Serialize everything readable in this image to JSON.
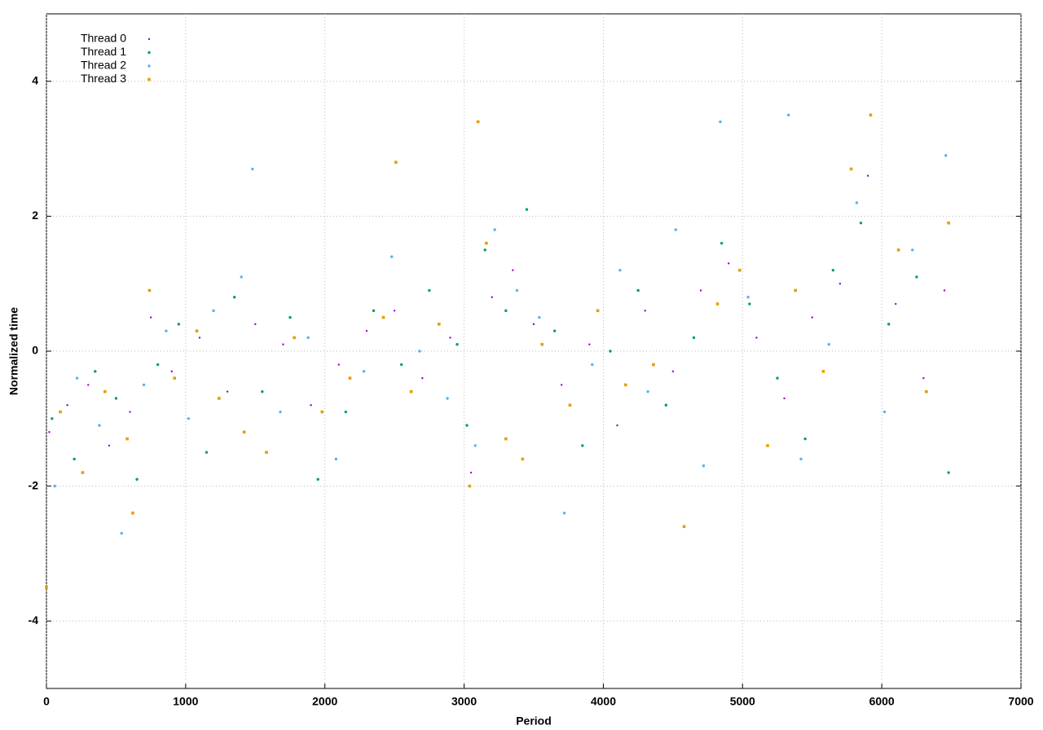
{
  "chart_data": {
    "type": "scatter",
    "x_label": "Period",
    "y_label": "Normalized time",
    "xlim": [
      0,
      7000
    ],
    "xticks": [
      0,
      1000,
      2000,
      3000,
      4000,
      5000,
      6000,
      7000
    ],
    "ylim": [
      -5,
      5
    ],
    "yticks": [
      -4,
      -2,
      0,
      2,
      4
    ],
    "grid": true,
    "legend": "top-left",
    "series": [
      {
        "name": "Thread 0",
        "color": "#9400d3",
        "x": [
          20,
          150,
          300,
          450,
          600,
          750,
          900,
          1100,
          1300,
          1500,
          1700,
          1900,
          2100,
          2300,
          2500,
          2700,
          2900,
          3050,
          3200,
          3350,
          3500,
          3700,
          3900,
          4100,
          4300,
          4500,
          4700,
          4900,
          5100,
          5300,
          5500,
          5700,
          5900,
          6100,
          6300,
          6450
        ],
        "values": [
          -1.2,
          -0.8,
          -0.5,
          -1.4,
          -0.9,
          0.5,
          -0.3,
          0.2,
          -0.6,
          0.4,
          0.1,
          -0.8,
          -0.2,
          0.3,
          0.6,
          -0.4,
          0.2,
          -1.8,
          0.8,
          1.2,
          0.4,
          -0.5,
          0.1,
          -1.1,
          0.6,
          -0.3,
          0.9,
          1.3,
          0.2,
          -0.7,
          0.5,
          1.0,
          2.6,
          0.7,
          -0.4,
          0.9
        ]
      },
      {
        "name": "Thread 1",
        "color": "#009e73",
        "x": [
          40,
          200,
          350,
          500,
          650,
          800,
          950,
          1150,
          1350,
          1550,
          1750,
          1950,
          2150,
          2350,
          2550,
          2750,
          2950,
          3020,
          3150,
          3300,
          3450,
          3650,
          3850,
          4050,
          4250,
          4450,
          4650,
          4850,
          5050,
          5250,
          5450,
          5650,
          5850,
          6050,
          6250,
          6480
        ],
        "values": [
          -1.0,
          -1.6,
          -0.3,
          -0.7,
          -1.9,
          -0.2,
          0.4,
          -1.5,
          0.8,
          -0.6,
          0.5,
          -1.9,
          -0.9,
          0.6,
          -0.2,
          0.9,
          0.1,
          -1.1,
          1.5,
          0.6,
          2.1,
          0.3,
          -1.4,
          0.0,
          0.9,
          -0.8,
          0.2,
          1.6,
          0.7,
          -0.4,
          -1.3,
          1.2,
          1.9,
          0.4,
          1.1,
          -1.8
        ]
      },
      {
        "name": "Thread 2",
        "color": "#56b4e9",
        "x": [
          60,
          220,
          380,
          540,
          700,
          860,
          1020,
          1200,
          1400,
          1480,
          1680,
          1880,
          2080,
          2280,
          2480,
          2680,
          2880,
          3080,
          3220,
          3380,
          3540,
          3720,
          3920,
          4120,
          4320,
          4520,
          4720,
          4840,
          5040,
          5330,
          5420,
          5620,
          5820,
          6020,
          6220,
          6460
        ],
        "values": [
          -2.0,
          -0.4,
          -1.1,
          -2.7,
          -0.5,
          0.3,
          -1.0,
          0.6,
          1.1,
          2.7,
          -0.9,
          0.2,
          -1.6,
          -0.3,
          1.4,
          0.0,
          -0.7,
          -1.4,
          1.8,
          0.9,
          0.5,
          -2.4,
          -0.2,
          1.2,
          -0.6,
          1.8,
          -1.7,
          3.4,
          0.8,
          3.5,
          -1.6,
          0.1,
          2.2,
          -0.9,
          1.5,
          2.9
        ]
      },
      {
        "name": "Thread 3",
        "color": "#e69f00",
        "x": [
          0,
          100,
          260,
          420,
          580,
          620,
          740,
          920,
          1080,
          1240,
          1420,
          1580,
          1780,
          1980,
          2180,
          2420,
          2510,
          2620,
          2820,
          3040,
          3100,
          3160,
          3300,
          3420,
          3560,
          3760,
          3960,
          4160,
          4360,
          4580,
          4820,
          4980,
          5180,
          5380,
          5580,
          5780,
          5920,
          6120,
          6320,
          6480
        ],
        "values": [
          -3.5,
          -0.9,
          -1.8,
          -0.6,
          -1.3,
          -2.4,
          0.9,
          -0.4,
          0.3,
          -0.7,
          -1.2,
          -1.5,
          0.2,
          -0.9,
          -0.4,
          0.5,
          2.8,
          -0.6,
          0.4,
          -2.0,
          3.4,
          1.6,
          -1.3,
          -1.6,
          0.1,
          -0.8,
          0.6,
          -0.5,
          -0.2,
          -2.6,
          0.7,
          1.2,
          -1.4,
          0.9,
          -0.3,
          2.7,
          3.5,
          1.5,
          -0.6,
          1.9
        ]
      }
    ]
  }
}
